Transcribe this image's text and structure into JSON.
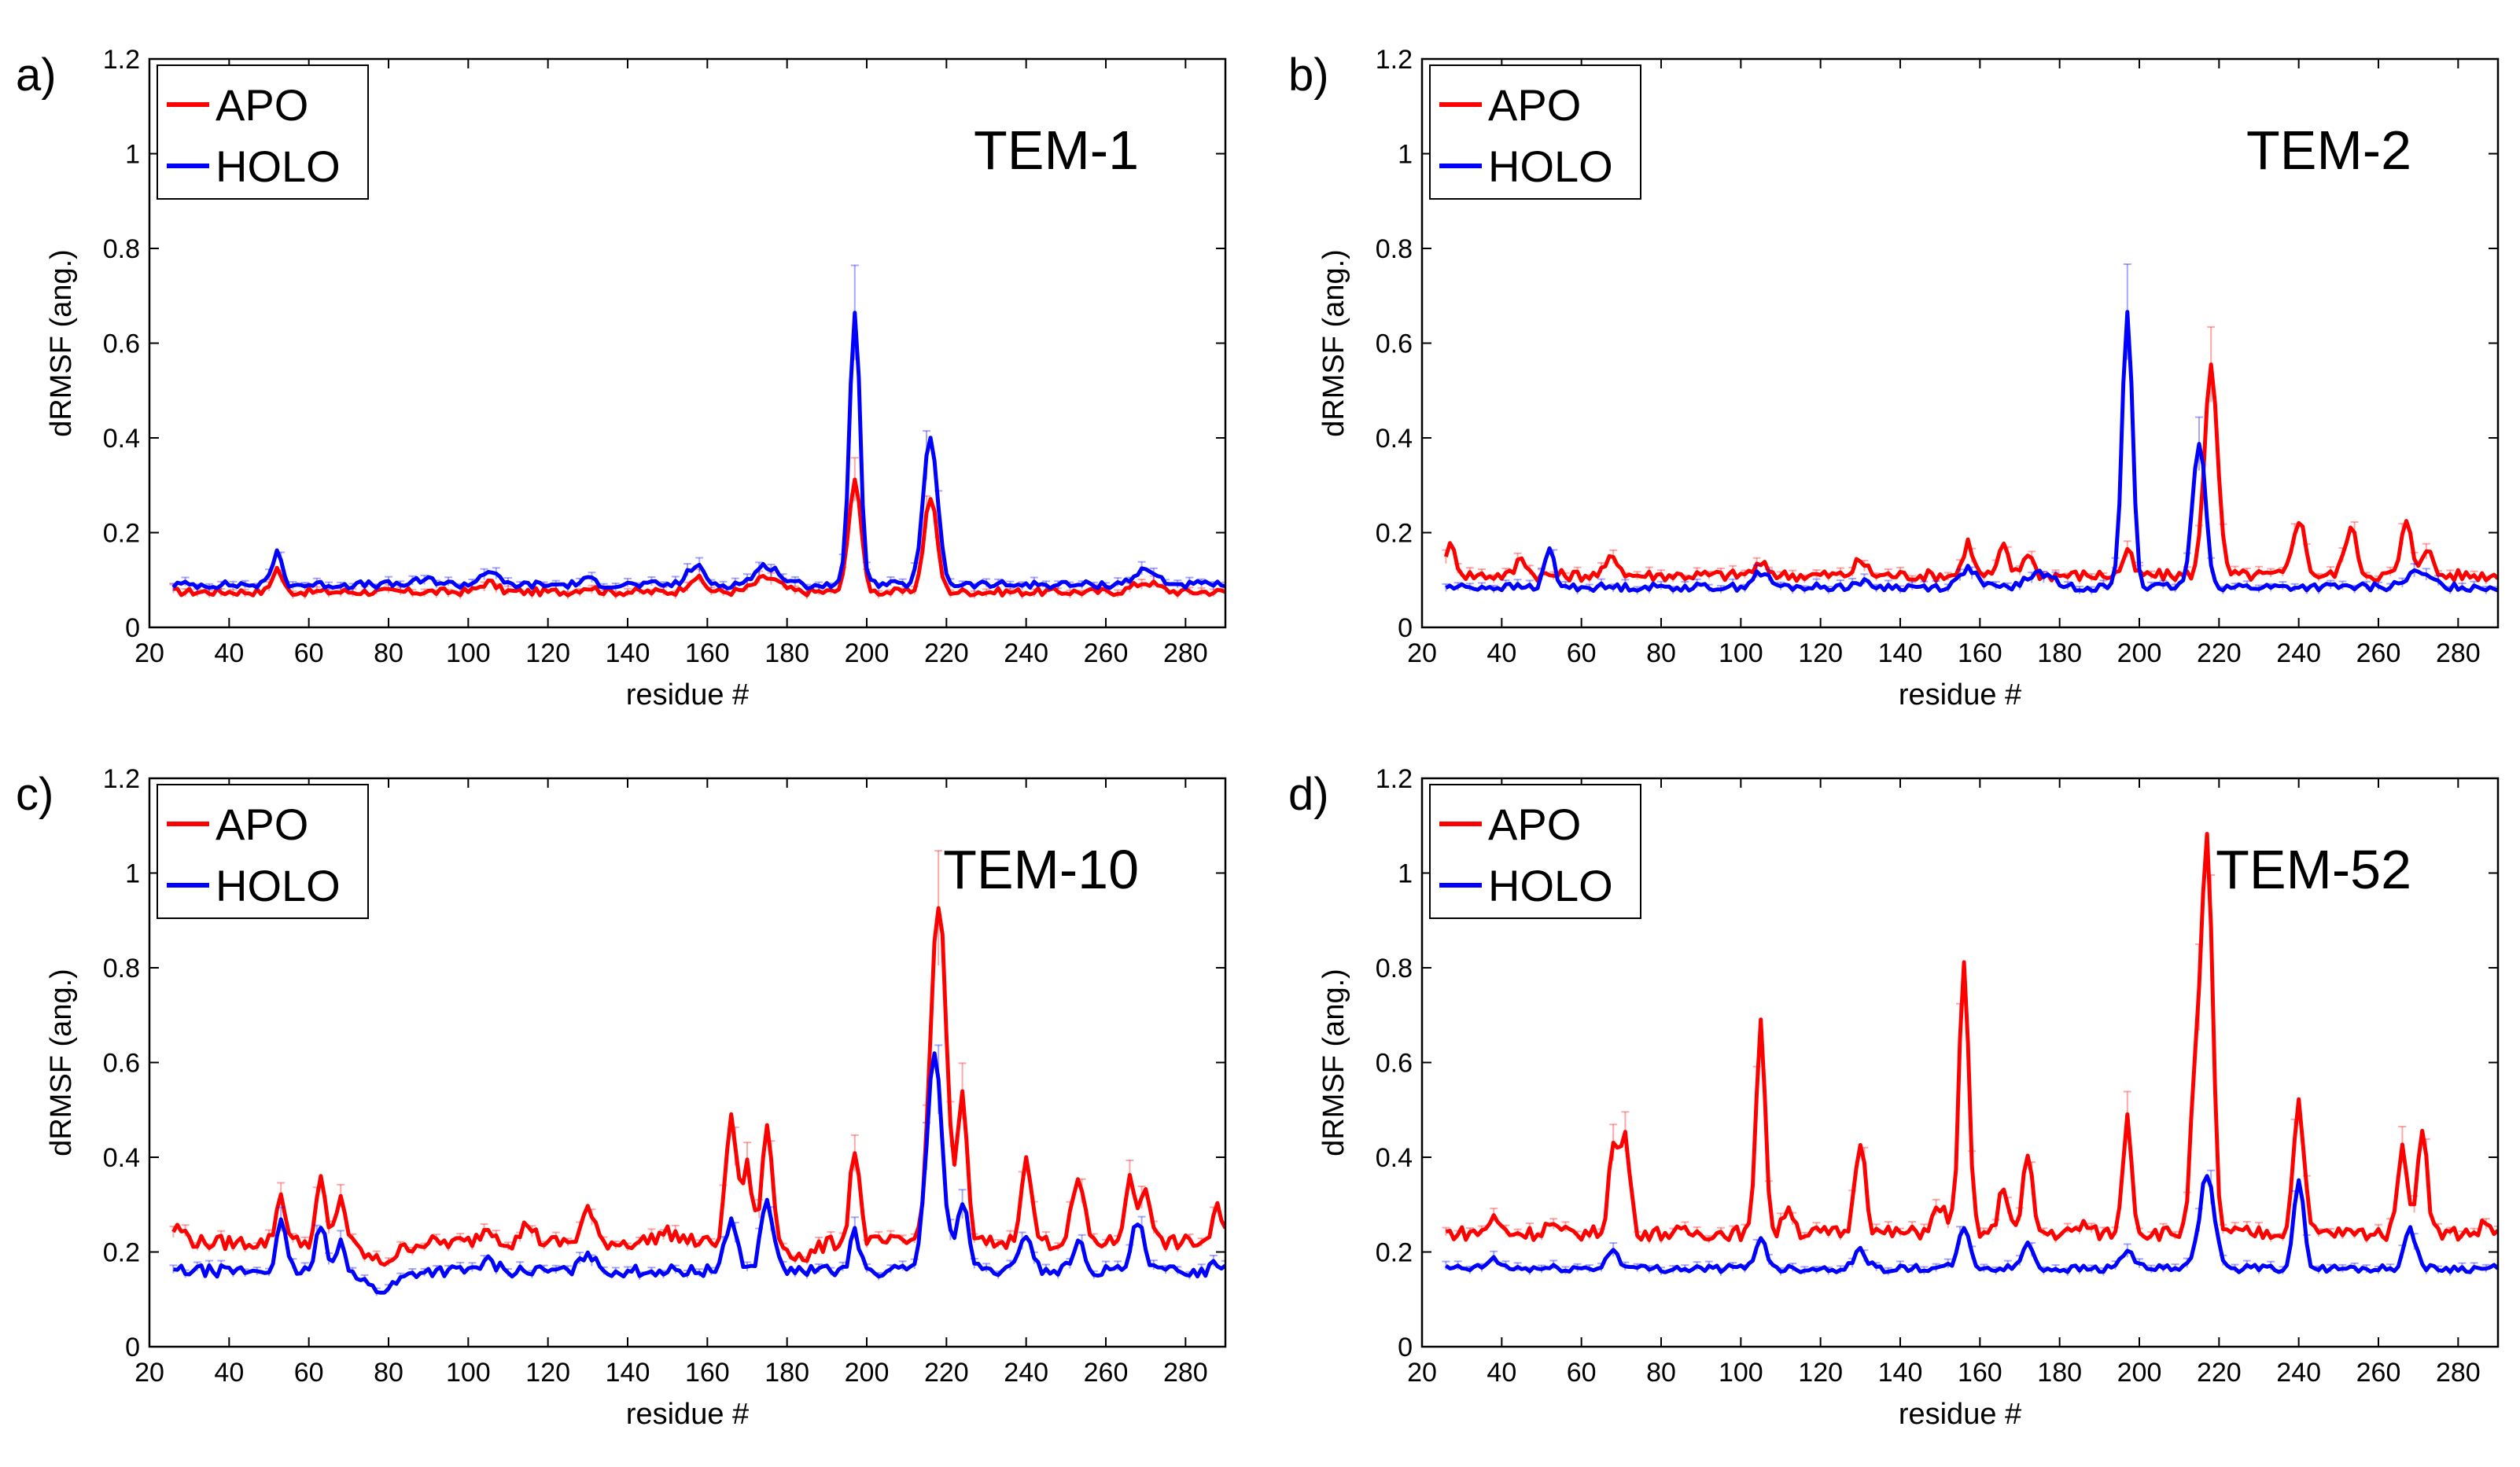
{
  "figure": {
    "xlabel": "residue #",
    "ylabel": "dRMSF (ang.)",
    "xlim": [
      20,
      290
    ],
    "ylim": [
      0,
      1.2
    ],
    "xticks": [
      "20",
      "40",
      "60",
      "80",
      "100",
      "120",
      "140",
      "160",
      "180",
      "200",
      "220",
      "240",
      "260",
      "280"
    ],
    "yticks": [
      "0",
      "0.2",
      "0.4",
      "0.6",
      "0.8",
      "1",
      "1.2"
    ],
    "legend": [
      "APO",
      "HOLO"
    ],
    "colors": {
      "APO": "#ff0000",
      "HOLO": "#0000ff"
    }
  },
  "chart_data": [
    {
      "type": "line",
      "panel": "a)",
      "title": "TEM-1",
      "xlabel": "residue #",
      "ylabel": "dRMSF (ang.)",
      "xlim": [
        20,
        290
      ],
      "ylim": [
        0,
        1.2
      ],
      "legend_position": "top-left",
      "series": [
        {
          "name": "APO",
          "color": "#ff0000",
          "baseline": 0.075,
          "noise": 0.008,
          "peaks": [
            [
              52,
              0.05,
              1.2
            ],
            [
              105,
              0.02,
              2
            ],
            [
              130,
              0.01,
              2
            ],
            [
              157,
              0.03,
              2
            ],
            [
              175,
              0.03,
              3
            ],
            [
              197,
              0.24,
              1.5
            ],
            [
              216,
              0.2,
              1.6
            ],
            [
              270,
              0.02,
              3
            ]
          ]
        },
        {
          "name": "HOLO",
          "color": "#0000ff",
          "baseline": 0.09,
          "noise": 0.008,
          "peaks": [
            [
              52,
              0.07,
              1.2
            ],
            [
              90,
              0.01,
              3
            ],
            [
              105,
              0.03,
              2
            ],
            [
              130,
              0.01,
              2
            ],
            [
              157,
              0.04,
              2
            ],
            [
              175,
              0.04,
              3
            ],
            [
              197,
              0.58,
              1.3
            ],
            [
              216,
              0.31,
              1.8
            ],
            [
              270,
              0.03,
              3
            ]
          ]
        }
      ]
    },
    {
      "type": "line",
      "panel": "b)",
      "title": "TEM-2",
      "xlabel": "residue #",
      "ylabel": "dRMSF (ang.)",
      "xlim": [
        20,
        290
      ],
      "ylim": [
        0,
        1.2
      ],
      "legend_position": "top-left",
      "series": [
        {
          "name": "APO",
          "color": "#ff0000",
          "baseline": 0.11,
          "noise": 0.012,
          "peaks": [
            [
              27,
              0.06,
              1.5
            ],
            [
              45,
              0.04,
              1.2
            ],
            [
              68,
              0.04,
              1.5
            ],
            [
              105,
              0.02,
              2
            ],
            [
              130,
              0.03,
              1.5
            ],
            [
              157,
              0.07,
              1.2
            ],
            [
              166,
              0.06,
              1.2
            ],
            [
              172,
              0.05,
              1.2
            ],
            [
              197,
              0.05,
              1.2
            ],
            [
              218,
              0.45,
              1.6
            ],
            [
              240,
              0.12,
              1.5
            ],
            [
              253,
              0.1,
              1.5
            ],
            [
              267,
              0.11,
              1.3
            ],
            [
              272,
              0.06,
              1.3
            ]
          ]
        },
        {
          "name": "HOLO",
          "color": "#0000ff",
          "baseline": 0.085,
          "noise": 0.008,
          "peaks": [
            [
              52,
              0.08,
              1.2
            ],
            [
              105,
              0.03,
              2
            ],
            [
              130,
              0.01,
              2
            ],
            [
              157,
              0.04,
              2
            ],
            [
              175,
              0.03,
              3
            ],
            [
              197,
              0.58,
              1.3
            ],
            [
              215,
              0.31,
              1.6
            ],
            [
              270,
              0.03,
              3
            ]
          ]
        }
      ]
    },
    {
      "type": "line",
      "panel": "c)",
      "title": "TEM-10",
      "xlabel": "residue #",
      "ylabel": "dRMSF (ang.)",
      "xlim": [
        20,
        290
      ],
      "ylim": [
        0,
        1.2
      ],
      "legend_position": "top-left",
      "series": [
        {
          "name": "APO",
          "color": "#ff0000",
          "baseline": 0.22,
          "noise": 0.015,
          "peaks": [
            [
              27,
              0.03,
              2
            ],
            [
              53,
              0.1,
              1.2
            ],
            [
              63,
              0.13,
              1.1
            ],
            [
              68,
              0.1,
              1.2
            ],
            [
              78,
              -0.04,
              4
            ],
            [
              105,
              0.03,
              2
            ],
            [
              115,
              0.04,
              1.5
            ],
            [
              130,
              0.07,
              1.5
            ],
            [
              150,
              0.02,
              3
            ],
            [
              166,
              0.27,
              1.3
            ],
            [
              170,
              0.16,
              1.2
            ],
            [
              175,
              0.24,
              1.3
            ],
            [
              184,
              -0.03,
              3
            ],
            [
              197,
              0.2,
              1.2
            ],
            [
              218,
              0.72,
              2.0
            ],
            [
              224,
              0.3,
              1.2
            ],
            [
              240,
              0.17,
              1.4
            ],
            [
              253,
              0.13,
              1.5
            ],
            [
              266,
              0.13,
              1.3
            ],
            [
              270,
              0.12,
              1.3
            ],
            [
              288,
              0.07,
              1.2
            ]
          ]
        },
        {
          "name": "HOLO",
          "color": "#0000ff",
          "baseline": 0.16,
          "noise": 0.012,
          "peaks": [
            [
              53,
              0.1,
              1.2
            ],
            [
              63,
              0.1,
              1.1
            ],
            [
              68,
              0.07,
              1.2
            ],
            [
              78,
              -0.04,
              4
            ],
            [
              105,
              0.02,
              2
            ],
            [
              130,
              0.04,
              1.5
            ],
            [
              166,
              0.11,
              1.5
            ],
            [
              175,
              0.15,
              1.5
            ],
            [
              197,
              0.08,
              1.2
            ],
            [
              217,
              0.45,
              2.0
            ],
            [
              224,
              0.14,
              1.5
            ],
            [
              240,
              0.08,
              1.5
            ],
            [
              253,
              0.06,
              1.5
            ],
            [
              268,
              0.1,
              1.5
            ],
            [
              288,
              0.02,
              1.2
            ]
          ]
        }
      ]
    },
    {
      "type": "line",
      "panel": "d)",
      "title": "TEM-52",
      "xlabel": "residue #",
      "ylabel": "dRMSF (ang.)",
      "xlim": [
        20,
        290
      ],
      "ylim": [
        0,
        1.2
      ],
      "legend_position": "top-left",
      "series": [
        {
          "name": "APO",
          "color": "#ff0000",
          "baseline": 0.24,
          "noise": 0.015,
          "peaks": [
            [
              38,
              0.03,
              1.5
            ],
            [
              52,
              0.02,
              1.2
            ],
            [
              68,
              0.18,
              1.2
            ],
            [
              71,
              0.2,
              1.2
            ],
            [
              105,
              0.46,
              1.1
            ],
            [
              112,
              0.06,
              1.2
            ],
            [
              130,
              0.2,
              1.3
            ],
            [
              150,
              0.05,
              2
            ],
            [
              156,
              0.56,
              1.2
            ],
            [
              166,
              0.1,
              1.2
            ],
            [
              172,
              0.16,
              1.2
            ],
            [
              186,
              0.02,
              1.2
            ],
            [
              197,
              0.25,
              1.1
            ],
            [
              214,
              0.3,
              1.2
            ],
            [
              217,
              0.82,
              1.4
            ],
            [
              240,
              0.28,
              1.3
            ],
            [
              266,
              0.2,
              1.1
            ],
            [
              271,
              0.23,
              1.2
            ],
            [
              287,
              0.02,
              1.2
            ]
          ]
        },
        {
          "name": "HOLO",
          "color": "#0000ff",
          "baseline": 0.165,
          "noise": 0.008,
          "peaks": [
            [
              38,
              0.02,
              1.5
            ],
            [
              68,
              0.04,
              1.5
            ],
            [
              105,
              0.06,
              1.5
            ],
            [
              130,
              0.04,
              1.5
            ],
            [
              156,
              0.08,
              1.5
            ],
            [
              172,
              0.05,
              1.5
            ],
            [
              197,
              0.04,
              1.5
            ],
            [
              217,
              0.2,
              1.8
            ],
            [
              240,
              0.18,
              1.3
            ],
            [
              268,
              0.08,
              1.5
            ]
          ]
        }
      ]
    }
  ]
}
